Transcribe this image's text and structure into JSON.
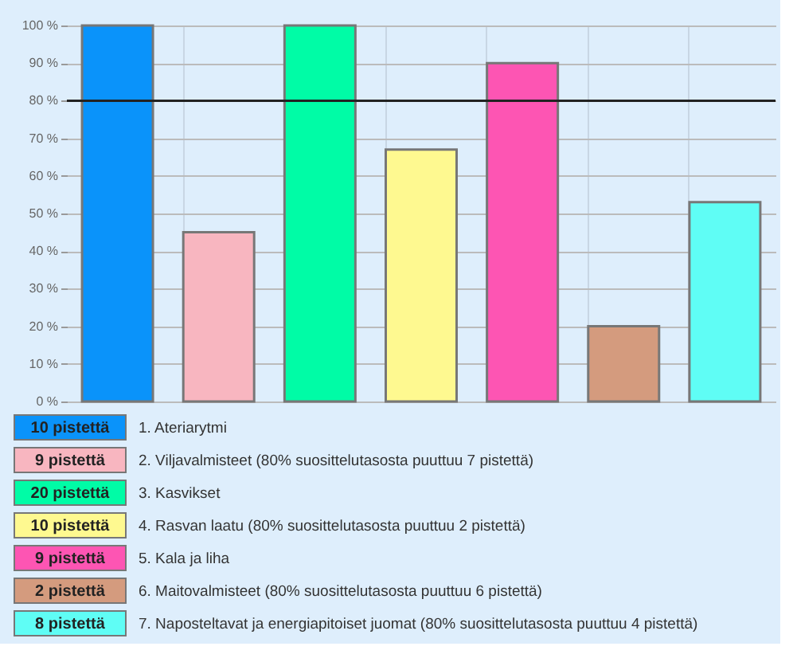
{
  "chart_data": {
    "type": "bar",
    "categories": [
      null,
      null,
      null,
      null,
      null,
      null,
      null
    ],
    "values": [
      100,
      45,
      100,
      67,
      90,
      20,
      53
    ],
    "colors": [
      "#0a93fa",
      "#f8b6c0",
      "#00fca6",
      "#fef990",
      "#fd55b3",
      "#d49b7e",
      "#5ffdf5"
    ],
    "annotations": [
      "10 pistettä",
      "1. Ateriarytmi",
      "9 pistettä",
      "2. Viljavalmisteet (80% suosittelutasosta puuttuu 7 pistettä)",
      "20 pistettä",
      "3. Kasvikset",
      "10 pistettä",
      "4. Rasvan laatu (80% suosittelutasosta puuttuu 2 pistettä)",
      "9 pistettä",
      "5. Kala ja liha",
      "2 pistettä",
      "6. Maitovalmisteet (80% suosittelutasosta puuttuu 6 pistettä)",
      "8 pistettä",
      "7. Naposteltavat ja energiapitoiset juomat (80% suosittelutasosta puuttuu 4 pistettä)"
    ],
    "ylim": [
      0,
      100
    ],
    "yticks": [
      {
        "value": 0,
        "label": "0 %"
      },
      {
        "value": 10,
        "label": "10 %"
      },
      {
        "value": 20,
        "label": "20 %"
      },
      {
        "value": 30,
        "label": "30 %"
      },
      {
        "value": 40,
        "label": "40 %"
      },
      {
        "value": 50,
        "label": "50 %"
      },
      {
        "value": 60,
        "label": "60 %"
      },
      {
        "value": 70,
        "label": "70 %"
      },
      {
        "value": 80,
        "label": "80 %"
      },
      {
        "value": 90,
        "label": "90 %"
      },
      {
        "value": 100,
        "label": "100 %"
      }
    ],
    "ref_lines": [
      {
        "axis": "y",
        "value": 80,
        "color": "#222222"
      }
    ],
    "grid": true,
    "tick_labels": "y"
  }
}
